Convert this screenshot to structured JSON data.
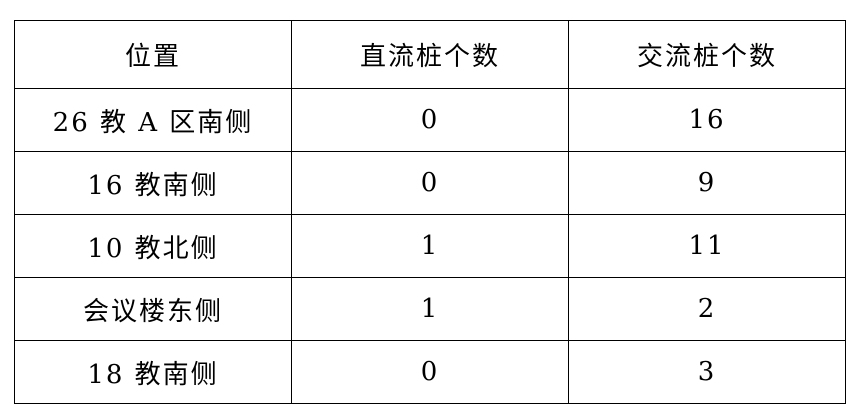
{
  "table": {
    "headers": [
      "位置",
      "直流桩个数",
      "交流桩个数"
    ],
    "rows": [
      [
        "26 教 A 区南侧",
        "0",
        "16"
      ],
      [
        "16 教南侧",
        "0",
        "9"
      ],
      [
        "10 教北侧",
        "1",
        "11"
      ],
      [
        "会议楼东侧",
        "1",
        "2"
      ],
      [
        "18 教南侧",
        "0",
        "3"
      ]
    ]
  }
}
